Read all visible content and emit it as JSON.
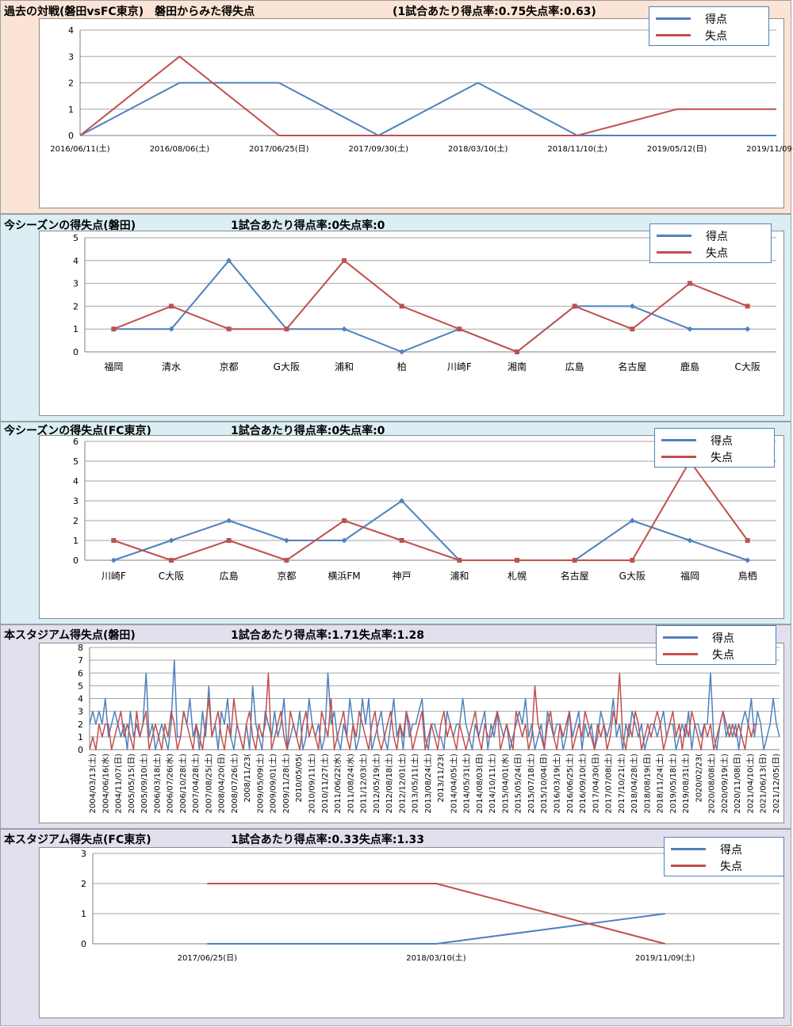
{
  "colors": {
    "goals": "#4f81bd",
    "conceded": "#c0504d"
  },
  "legend": {
    "goals": "得点",
    "conceded": "失点"
  },
  "chart_data": [
    {
      "id": "c1",
      "type": "line",
      "title": "過去の対戦(磐田vsFC東京)　磐田からみた得失点",
      "rate_text": "(1試合あたり得点率:0.75失点率:0.63)",
      "categories": [
        "2016/06/11(土)",
        "2016/08/06(土)",
        "2017/06/25(日)",
        "2017/09/30(土)",
        "2018/03/10(土)",
        "2018/11/10(土)",
        "2019/05/12(日)",
        "2019/11/09(土)"
      ],
      "series": [
        {
          "name": "得点",
          "values": [
            0,
            2,
            2,
            0,
            2,
            0,
            0,
            0
          ]
        },
        {
          "name": "失点",
          "values": [
            0,
            3,
            0,
            0,
            0,
            0,
            1,
            1
          ]
        }
      ],
      "ylim": [
        0,
        4
      ],
      "markers": false
    },
    {
      "id": "c2",
      "type": "line",
      "title": "今シーズンの得失点(磐田)",
      "rate_text": "1試合あたり得点率:0失点率:0",
      "categories": [
        "福岡",
        "清水",
        "京都",
        "G大阪",
        "浦和",
        "柏",
        "川崎F",
        "湘南",
        "広島",
        "名古屋",
        "鹿島",
        "C大阪"
      ],
      "series": [
        {
          "name": "得点",
          "values": [
            1,
            1,
            4,
            1,
            1,
            0,
            1,
            0,
            2,
            2,
            1,
            1
          ]
        },
        {
          "name": "失点",
          "values": [
            1,
            2,
            1,
            1,
            4,
            2,
            1,
            0,
            2,
            1,
            3,
            2
          ]
        }
      ],
      "ylim": [
        0,
        5
      ],
      "markers": true
    },
    {
      "id": "c3",
      "type": "line",
      "title": "今シーズンの得失点(FC東京)",
      "rate_text": "1試合あたり得点率:0失点率:0",
      "categories": [
        "川崎F",
        "C大阪",
        "広島",
        "京都",
        "横浜FM",
        "神戸",
        "浦和",
        "札幌",
        "名古屋",
        "G大阪",
        "福岡",
        "鳥栖"
      ],
      "series": [
        {
          "name": "得点",
          "values": [
            0,
            1,
            2,
            1,
            1,
            3,
            0,
            0,
            0,
            2,
            1,
            0
          ]
        },
        {
          "name": "失点",
          "values": [
            1,
            0,
            1,
            0,
            2,
            1,
            0,
            0,
            0,
            0,
            5,
            1
          ]
        }
      ],
      "ylim": [
        0,
        6
      ],
      "markers": true
    },
    {
      "id": "c4",
      "type": "line",
      "title": "本スタジアム得失点(磐田)",
      "rate_text": "1試合あたり得点率:1.71失点率:1.28",
      "tick_labels": [
        "2004/03/13(土)",
        "2004/06/16(水)",
        "2004/11/07(日)",
        "2005/05/15(日)",
        "2005/09/10(土)",
        "2006/03/18(土)",
        "2006/07/26(水)",
        "2006/10/28(土)",
        "2007/04/28(土)",
        "2007/08/25(土)",
        "2008/04/20(日)",
        "2008/07/26(土)",
        "2008/11/23(",
        "2009/05/09(土)",
        "2009/09/01(土)",
        "2009/11/28(土)",
        "2010/05/05(",
        "2010/09/11(土)",
        "2010/11/27(土)",
        "2011/06/22(水)",
        "2011/08/24(水)",
        "2011/12/03(土)",
        "2012/05/19(土)",
        "2012/08/18(土)",
        "2012/12/01(土)",
        "2013/05/11(土)",
        "2013/08/24(土)",
        "2013/11/23(",
        "2014/04/05(土)",
        "2014/05/31(土)",
        "2014/08/03(日)",
        "2014/10/11(土)",
        "2015/04/01(水)",
        "2015/05/24(日)",
        "2015/07/18(土)",
        "2015/10/04(日)",
        "2016/03/19(土)",
        "2016/06/25(土)",
        "2016/09/10(土)",
        "2017/04/30(日)",
        "2017/07/08(土)",
        "2017/10/21(土)",
        "2018/04/28(土)",
        "2018/08/19(日)",
        "2018/11/24(土)",
        "2019/05/18(土)",
        "2019/08/31(土)",
        "2020/02/23(",
        "2020/08/08(土)",
        "2020/09/19(土)",
        "2020/11/08(日)",
        "2021/04/10(土)",
        "2021/06/13(日)",
        "2021/12/05(日)"
      ],
      "series": [
        {
          "name": "得点",
          "values": [
            2,
            3,
            2,
            3,
            2,
            4,
            1,
            2,
            3,
            2,
            1,
            2,
            0,
            3,
            1,
            2,
            1,
            2,
            6,
            1,
            2,
            0,
            1,
            2,
            1,
            0,
            2,
            7,
            1,
            1,
            3,
            2,
            4,
            1,
            2,
            0,
            3,
            1,
            5,
            1,
            2,
            0,
            3,
            2,
            4,
            1,
            0,
            2,
            1,
            0,
            2,
            0,
            5,
            2,
            1,
            0,
            3,
            2,
            1,
            3,
            1,
            2,
            4,
            0,
            1,
            2,
            1,
            3,
            0,
            1,
            4,
            2,
            1,
            2,
            0,
            1,
            6,
            2,
            3,
            1,
            0,
            2,
            1,
            4,
            2,
            0,
            1,
            4,
            2,
            4,
            0,
            1,
            2,
            3,
            1,
            0,
            2,
            4,
            1,
            2,
            0,
            3,
            1,
            2,
            2,
            3,
            4,
            1,
            0,
            2,
            2,
            1,
            1,
            0,
            3,
            2,
            1,
            2,
            2,
            4,
            2,
            1,
            0,
            2,
            1,
            2,
            3,
            0,
            2,
            1,
            3,
            2,
            1,
            2,
            0,
            1,
            2,
            3,
            2,
            4,
            1,
            2,
            0,
            1,
            2,
            0,
            3,
            2,
            1,
            2,
            2,
            0,
            1,
            3,
            1,
            2,
            3,
            0,
            2,
            1,
            2,
            0,
            1,
            3,
            2,
            1,
            2,
            4,
            1,
            2,
            0,
            2,
            1,
            3,
            2,
            1,
            2,
            0,
            1,
            2,
            2,
            1,
            2,
            3,
            1,
            2,
            2,
            0,
            1,
            2,
            1,
            3,
            0,
            2,
            2,
            1,
            2,
            2,
            6,
            1,
            0,
            2,
            3,
            1,
            2,
            1,
            2,
            0,
            2,
            3,
            2,
            4,
            1,
            3,
            2,
            0,
            1,
            2,
            4,
            2,
            1
          ]
        },
        {
          "name": "失点",
          "values": [
            0,
            1,
            0,
            2,
            1,
            2,
            2,
            0,
            1,
            2,
            3,
            1,
            2,
            1,
            0,
            3,
            1,
            2,
            3,
            0,
            1,
            2,
            1,
            0,
            2,
            1,
            3,
            2,
            0,
            1,
            3,
            2,
            1,
            0,
            2,
            1,
            0,
            2,
            4,
            1,
            2,
            3,
            1,
            0,
            2,
            1,
            4,
            2,
            1,
            0,
            2,
            3,
            1,
            0,
            2,
            1,
            2,
            6,
            0,
            1,
            2,
            3,
            1,
            0,
            3,
            2,
            1,
            0,
            2,
            3,
            1,
            2,
            1,
            0,
            3,
            2,
            1,
            4,
            0,
            1,
            2,
            3,
            1,
            0,
            2,
            1,
            3,
            2,
            1,
            0,
            2,
            3,
            1,
            0,
            1,
            2,
            3,
            1,
            0,
            2,
            1,
            3,
            2,
            0,
            1,
            2,
            3,
            0,
            1,
            2,
            1,
            0,
            2,
            3,
            1,
            2,
            1,
            0,
            2,
            1,
            0,
            1,
            2,
            3,
            1,
            0,
            2,
            1,
            1,
            2,
            3,
            0,
            1,
            2,
            1,
            0,
            3,
            2,
            1,
            2,
            0,
            1,
            5,
            2,
            1,
            0,
            2,
            3,
            1,
            0,
            2,
            1,
            2,
            3,
            0,
            1,
            2,
            1,
            3,
            2,
            1,
            0,
            2,
            1,
            2,
            0,
            1,
            3,
            2,
            6,
            1,
            0,
            2,
            1,
            3,
            2,
            0,
            1,
            2,
            1,
            2,
            3,
            2,
            0,
            1,
            2,
            3,
            1,
            2,
            0,
            2,
            1,
            3,
            2,
            1,
            0,
            2,
            1,
            2,
            0,
            1,
            2,
            3,
            2,
            1,
            2,
            1,
            2,
            1,
            0,
            2,
            1,
            2,
            2
          ]
        }
      ],
      "ylim": [
        0,
        8
      ],
      "markers": false
    },
    {
      "id": "c5",
      "type": "line",
      "title": "本スタジアム得失点(FC東京)",
      "rate_text": "1試合あたり得点率:0.33失点率:1.33",
      "categories": [
        "2017/06/25(日)",
        "2018/03/10(土)",
        "2019/11/09(土)"
      ],
      "series": [
        {
          "name": "得点",
          "values": [
            0,
            0,
            1
          ]
        },
        {
          "name": "失点",
          "values": [
            2,
            2,
            0
          ]
        }
      ],
      "ylim": [
        0,
        3
      ],
      "markers": false
    }
  ]
}
